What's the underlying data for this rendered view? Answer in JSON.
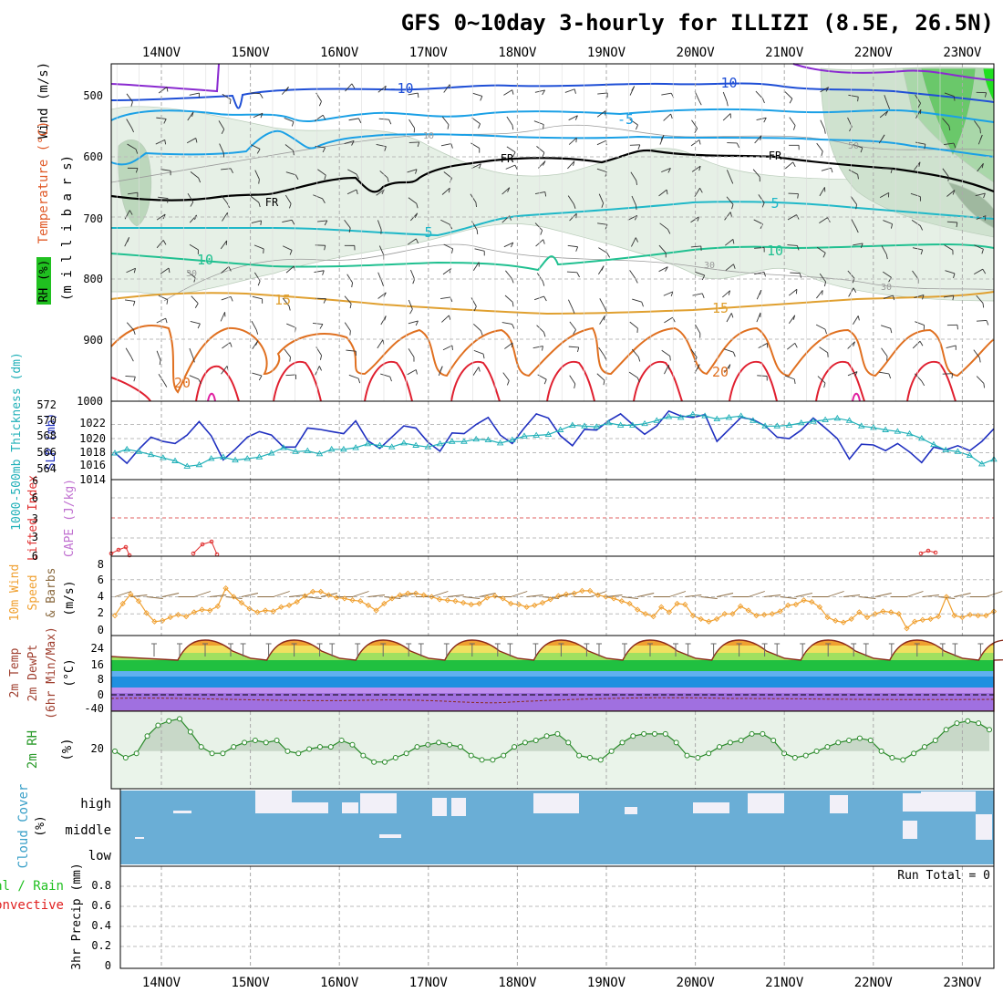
{
  "title": "GFS 0~10day 3-hourly for ILLIZI (8.5E, 26.5N)",
  "days": [
    "14NOV",
    "15NOV",
    "16NOV",
    "17NOV",
    "18NOV",
    "19NOV",
    "20NOV",
    "21NOV",
    "22NOV",
    "23NOV"
  ],
  "colors": {
    "rh_fill": "#2ea84a",
    "temp_minus10": "#1f4fd6",
    "temp_minus5": "#1aa0e6",
    "freezing": "#000000",
    "temp_5": "#20b8c8",
    "temp_10": "#20c090",
    "temp_15": "#e0a030",
    "temp_20": "#e07020",
    "temp_25": "#e02030",
    "slp": "#2030c0",
    "thickness": "#20b0b8",
    "lifted_index": "#e03030",
    "cape": "#c070d0",
    "wind10m": "#f0a030",
    "rh2m": "#2a8a2a",
    "cloud": "#6aaed6",
    "precip_total": "#20c020",
    "precip_conv": "#e02020"
  },
  "panels": {
    "upper_air": {
      "ylabel_wind": "Wind (m/s)",
      "ylabel_temp": "Temperature (°C)",
      "ylabel_p": "(m i l l i b a r s)",
      "rh_badge": "RH (%)",
      "pressure_ticks": [
        "500",
        "600",
        "700",
        "800",
        "900",
        "1000"
      ],
      "contour_labels": {
        "m10a": "-10",
        "m10b": "-10",
        "m5": "-5",
        "fr1": "FR",
        "fr2": "FR",
        "fr3": "FR",
        "p5a": "5",
        "p5b": "5",
        "p10a": "10",
        "p10b": "10",
        "p15a": "15",
        "p15b": "15",
        "p20a": "20",
        "p20b": "20",
        "rh30a": "30",
        "rh30b": "30",
        "rh30c": "30",
        "rh10": "10",
        "rh50": "50"
      }
    },
    "slp_thickness": {
      "ylabel_thk": "1000-500mb Thickness (dm)",
      "ylabel_slp": "SLP (mb)",
      "thk_ticks": [
        "572",
        "570",
        "568",
        "566",
        "564"
      ],
      "slp_ticks": [
        "1022",
        "1020",
        "1018",
        "1016",
        "1014"
      ]
    },
    "stability": {
      "ylabel_li": "Lifted Index",
      "ylabel_cape": "CAPE (J/kg)",
      "li_ticks": [
        "6",
        "3",
        "0",
        "3",
        "6"
      ],
      "cape_top_tick": "6"
    },
    "wind10m": {
      "ylabel_a": "10m Wind",
      "ylabel_b": "Speed",
      "ylabel_c": "& Barbs",
      "ylabel_unit": "(m/s)",
      "ticks": [
        "8",
        "6",
        "4",
        "2",
        "0"
      ]
    },
    "temp2m": {
      "ylabel_a": "2m Temp",
      "ylabel_b": "2m DewPt",
      "ylabel_c": "(6hr Min/Max)",
      "ylabel_unit": "(°C)",
      "ticks": [
        "24",
        "16",
        "8",
        "0",
        "-40"
      ]
    },
    "rh2m": {
      "ylabel": "2m RH",
      "ylabel_unit": "(%)",
      "ticks": [
        "20"
      ]
    },
    "cloud": {
      "ylabel": "Cloud Cover",
      "ylabel_unit": "(%)",
      "levels": [
        "high",
        "middle",
        "low"
      ]
    },
    "precip": {
      "ylabel_a": "Total / Rain",
      "ylabel_b": "Convective",
      "ylabel_c": "3hr Precip (mm)",
      "run_total": "Run Total = 0",
      "ticks": [
        "0.8",
        "0.6",
        "0.4",
        "0.2",
        "0"
      ]
    }
  },
  "chart_data": [
    {
      "type": "line",
      "panel": "SLP and 1000-500mb thickness",
      "x_unit": "3-hourly steps from 13NOV 12Z",
      "series": [
        {
          "name": "SLP (mb)",
          "values": [
            1016.0,
            1014.5,
            1016.5,
            1018.2,
            1017.6,
            1017.3,
            1018.5,
            1020.4,
            1018.4,
            1015.0,
            1016.5,
            1018.2,
            1019.0,
            1018.5,
            1016.8,
            1016.8,
            1019.5,
            1019.3,
            1019.0,
            1018.7,
            1020.5,
            1017.7,
            1016.6,
            1018.2,
            1019.8,
            1019.5,
            1017.5,
            1016.2,
            1018.8,
            1018.7,
            1020.0,
            1021.0,
            1018.5,
            1017.3,
            1019.5,
            1021.5,
            1020.9,
            1018.4,
            1017.0,
            1019.3,
            1019.2,
            1020.5,
            1021.5,
            1020.0,
            1018.6,
            1019.8,
            1021.9,
            1021.2,
            1021.0,
            1021.4,
            1017.6,
            1019.3,
            1021.0,
            1020.7,
            1019.8,
            1018.2,
            1018.0,
            1019.2,
            1020.9,
            1019.5,
            1018.0,
            1015.1,
            1017.2,
            1017.1,
            1016.3,
            1017.3,
            1016.1,
            1014.6,
            1016.8,
            1016.4,
            1017.0,
            1016.3,
            1017.6,
            1019.4
          ]
        },
        {
          "name": "Thickness (dm)",
          "values": [
            566.0,
            566.5,
            566.2,
            565.8,
            565.4,
            565.0,
            564.3,
            564.5,
            565.3,
            565.5,
            565.1,
            565.3,
            565.5,
            566.0,
            566.7,
            566.2,
            566.3,
            565.9,
            566.5,
            566.5,
            566.7,
            567.2,
            567.0,
            566.8,
            567.3,
            567.0,
            566.8,
            567.2,
            567.5,
            567.5,
            567.8,
            567.7,
            567.3,
            567.7,
            568.2,
            568.3,
            568.4,
            569.0,
            569.6,
            569.5,
            569.4,
            569.9,
            569.6,
            569.6,
            569.8,
            570.2,
            570.7,
            570.6,
            571.0,
            570.8,
            570.4,
            570.6,
            570.8,
            570.2,
            569.5,
            569.5,
            569.6,
            569.9,
            570.1,
            570.3,
            570.5,
            570.2,
            569.5,
            569.3,
            569.0,
            568.8,
            568.5,
            567.9,
            567.1,
            566.4,
            566.2,
            565.7,
            564.6,
            565.2
          ]
        }
      ]
    },
    {
      "type": "line",
      "panel": "10m wind speed",
      "y_unit": "m/s",
      "ylim": [
        0,
        8
      ],
      "values": [
        1.8,
        3.2,
        4.3,
        3.5,
        2.1,
        1.1,
        1.2,
        1.6,
        1.9,
        1.7,
        2.2,
        2.5,
        2.4,
        2.9,
        5.0,
        4.0,
        3.3,
        2.6,
        2.2,
        2.4,
        2.3,
        2.8,
        3.0,
        3.4,
        4.1,
        4.6,
        4.6,
        4.2,
        3.9,
        3.8,
        3.6,
        3.5,
        3.0,
        2.4,
        3.2,
        3.8,
        4.2,
        4.4,
        4.4,
        4.2,
        4.0,
        3.7,
        3.6,
        3.5,
        3.3,
        3.1,
        3.2,
        3.9,
        4.1,
        3.8,
        3.2,
        3.1,
        2.8,
        3.0,
        3.3,
        3.7,
        4.1,
        4.3,
        4.4,
        4.7,
        4.7,
        4.2,
        4.0,
        3.8,
        3.5,
        3.2,
        2.5,
        2.0,
        1.7,
        2.8,
        2.2,
        3.2,
        3.1,
        1.8,
        1.4,
        1.1,
        1.4,
        2.0,
        2.0,
        2.9,
        2.4,
        1.8,
        1.9,
        2.0,
        2.3,
        3.0,
        3.1,
        3.6,
        3.4,
        2.8,
        1.6,
        1.2,
        1.0,
        1.4,
        2.2,
        1.6,
        2.0,
        2.3,
        2.2,
        2.0,
        0.3,
        1.1,
        1.3,
        1.4,
        1.7,
        4.0,
        1.8,
        1.6,
        1.9,
        1.8,
        1.8,
        2.3
      ]
    },
    {
      "type": "area",
      "panel": "2m temperature",
      "y_unit": "°C",
      "max_daily": [
        26,
        27,
        27,
        27,
        27,
        27,
        27,
        27,
        27,
        27
      ],
      "min_daily": [
        18,
        18,
        18,
        18,
        18,
        18,
        18,
        18,
        18,
        18
      ]
    },
    {
      "type": "line",
      "panel": "2m RH",
      "y_unit": "%",
      "values": [
        20,
        17,
        19,
        27,
        32,
        34,
        35,
        29,
        22,
        19,
        19,
        22,
        24,
        25,
        24,
        25,
        20,
        19,
        21,
        22,
        22,
        25,
        23,
        18,
        15,
        15,
        17,
        19,
        22,
        23,
        24,
        23,
        22,
        18,
        16,
        16,
        18,
        22,
        24,
        25,
        27,
        28,
        24,
        18,
        17,
        16,
        20,
        24,
        27,
        28,
        28,
        28,
        24,
        18,
        17,
        19,
        22,
        24,
        25,
        28,
        28,
        25,
        19,
        17,
        18,
        20,
        22,
        24,
        25,
        26,
        25,
        20,
        17,
        16,
        19,
        22,
        25,
        30,
        33,
        34,
        33,
        30
      ]
    },
    {
      "type": "table",
      "panel": "3hr precipitation",
      "y_unit": "mm",
      "ylim": [
        0,
        1
      ],
      "run_total": 0,
      "values": [
        0,
        0,
        0,
        0,
        0,
        0,
        0,
        0,
        0,
        0
      ]
    }
  ]
}
